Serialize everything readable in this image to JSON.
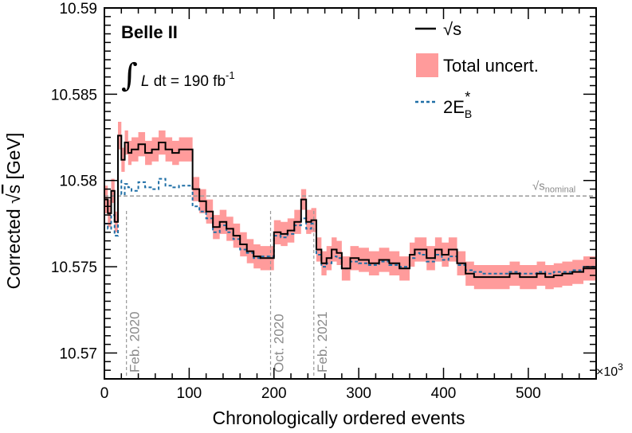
{
  "chart_data": {
    "type": "line",
    "xlabel": "Chronologically ordered events",
    "ylabel_prefix": "Corrected ",
    "ylabel_sqrt": "√",
    "ylabel_var": "s",
    "ylabel_unit": " [GeV]",
    "x_multiplier_prefix": "×10",
    "x_multiplier_exp": "3",
    "xlim": [
      0,
      580
    ],
    "ylim": [
      10.5685,
      10.59
    ],
    "x_ticks": [
      0,
      100,
      200,
      300,
      400,
      500
    ],
    "x_tick_labels": [
      "0",
      "100",
      "200",
      "300",
      "400",
      "500"
    ],
    "y_ticks": [
      10.57,
      10.575,
      10.58,
      10.585,
      10.59
    ],
    "y_tick_labels": [
      "10.57",
      "10.575",
      "10.58",
      "10.585",
      "10.59"
    ],
    "experiment": "Belle II",
    "luminosity": {
      "integral": "∫",
      "symbol": "L",
      "text": " dt = 190 fb",
      "sup": "-1"
    },
    "legend": [
      {
        "name": "√s",
        "style": "solid",
        "color": "#000000"
      },
      {
        "name": "Total uncert.",
        "style": "band",
        "color": "#ff9b9b"
      },
      {
        "name_main": "2E",
        "name_sub": "B",
        "name_sup": "*",
        "style": "dashed",
        "color": "#1f6fa6"
      }
    ],
    "nominal": {
      "value": 10.5791,
      "label_main": "√s",
      "label_sub": "nominal",
      "color": "#999999"
    },
    "annotations": [
      {
        "x": 26,
        "label": "Feb. 2020"
      },
      {
        "x": 196,
        "label": "Oct. 2020"
      },
      {
        "x": 247,
        "label": "Feb. 2021"
      }
    ],
    "series": [
      {
        "name": "√s",
        "x": [
          0,
          4,
          8,
          12,
          16,
          20,
          24,
          28,
          32,
          40,
          48,
          56,
          64,
          72,
          80,
          88,
          100,
          104,
          112,
          120,
          128,
          136,
          144,
          152,
          160,
          168,
          176,
          184,
          192,
          200,
          208,
          216,
          224,
          232,
          238,
          244,
          250,
          256,
          262,
          268,
          274,
          280,
          290,
          300,
          312,
          324,
          336,
          348,
          360,
          366,
          372,
          380,
          390,
          398,
          406,
          416,
          426,
          436,
          446,
          456,
          466,
          478,
          490,
          500,
          510,
          520,
          530,
          540,
          552,
          565,
          580
        ],
        "y": [
          10.5789,
          10.5781,
          10.5794,
          10.5776,
          10.5826,
          10.5812,
          10.5822,
          10.5816,
          10.5818,
          10.5821,
          10.5816,
          10.5818,
          10.5822,
          10.5818,
          10.5816,
          10.5818,
          10.5818,
          10.5795,
          10.5788,
          10.5782,
          10.5773,
          10.5776,
          10.5772,
          10.5768,
          10.5763,
          10.5759,
          10.5756,
          10.5755,
          10.5755,
          10.577,
          10.5769,
          10.5771,
          10.5776,
          10.5789,
          10.5776,
          10.5777,
          10.576,
          10.5752,
          10.5755,
          10.576,
          10.5758,
          10.5749,
          10.5755,
          10.5754,
          10.5752,
          10.5754,
          10.5752,
          10.5749,
          10.5757,
          10.576,
          10.576,
          10.5755,
          10.576,
          10.5757,
          10.576,
          10.5752,
          10.5746,
          10.5744,
          10.5744,
          10.5744,
          10.5744,
          10.5746,
          10.5744,
          10.5744,
          10.5746,
          10.5744,
          10.5745,
          10.5746,
          10.5747,
          10.5749,
          10.5749
        ]
      },
      {
        "name": "Total uncert.",
        "half_width": [
          0.0008,
          0.0008,
          0.0007,
          0.0006,
          0.0008,
          0.0007,
          0.0007,
          0.0007,
          0.0007,
          0.0007,
          0.0007,
          0.0007,
          0.0007,
          0.0007,
          0.0007,
          0.0007,
          0.0007,
          0.0007,
          0.0007,
          0.0007,
          0.0007,
          0.0007,
          0.0007,
          0.0007,
          0.0007,
          0.0007,
          0.0007,
          0.0007,
          0.0007,
          0.0007,
          0.0007,
          0.0007,
          0.0007,
          0.0006,
          0.0007,
          0.0007,
          0.0007,
          0.0007,
          0.0007,
          0.0007,
          0.0007,
          0.0007,
          0.0007,
          0.0007,
          0.0007,
          0.0007,
          0.0007,
          0.0007,
          0.0007,
          0.0007,
          0.0007,
          0.0007,
          0.0007,
          0.0007,
          0.0007,
          0.0007,
          0.0007,
          0.0007,
          0.0007,
          0.0007,
          0.0007,
          0.0007,
          0.0007,
          0.0007,
          0.0007,
          0.0007,
          0.0007,
          0.0007,
          0.0007,
          0.0007,
          0.0007
        ]
      },
      {
        "name": "2E_B*",
        "x": [
          0,
          4,
          8,
          12,
          16,
          20,
          24,
          28,
          32,
          40,
          48,
          56,
          64,
          72,
          80,
          88,
          100,
          104,
          112,
          120,
          128,
          136,
          144,
          152,
          160,
          168,
          176,
          184,
          192,
          200,
          208,
          216,
          224,
          232,
          238,
          244,
          250,
          256,
          262,
          268,
          274,
          280,
          290,
          300,
          312,
          324,
          336,
          348,
          360,
          366,
          372,
          380,
          390,
          398,
          406,
          416,
          426,
          436,
          446,
          456,
          466,
          478,
          490,
          500,
          510,
          520,
          530,
          540,
          552,
          565,
          580
        ],
        "y": [
          10.5775,
          10.5772,
          10.578,
          10.5768,
          10.58,
          10.5792,
          10.5798,
          10.5796,
          10.5794,
          10.5799,
          10.5796,
          10.5795,
          10.5801,
          10.5797,
          10.5796,
          10.5797,
          10.5797,
          10.5785,
          10.5782,
          10.5778,
          10.577,
          10.5774,
          10.577,
          10.5766,
          10.576,
          10.5758,
          10.5755,
          10.5756,
          10.5756,
          10.5768,
          10.5767,
          10.5769,
          10.5774,
          10.5778,
          10.5772,
          10.5775,
          10.5757,
          10.575,
          10.5752,
          10.5756,
          10.5755,
          10.5749,
          10.5753,
          10.5752,
          10.5751,
          10.5753,
          10.5751,
          10.575,
          10.5755,
          10.5758,
          10.5757,
          10.5753,
          10.5757,
          10.5754,
          10.5756,
          10.5751,
          10.5748,
          10.5747,
          10.5746,
          10.5746,
          10.5746,
          10.5747,
          10.5746,
          10.5746,
          10.5747,
          10.5746,
          10.5747,
          10.5747,
          10.5748,
          10.575,
          10.575
        ]
      }
    ]
  }
}
